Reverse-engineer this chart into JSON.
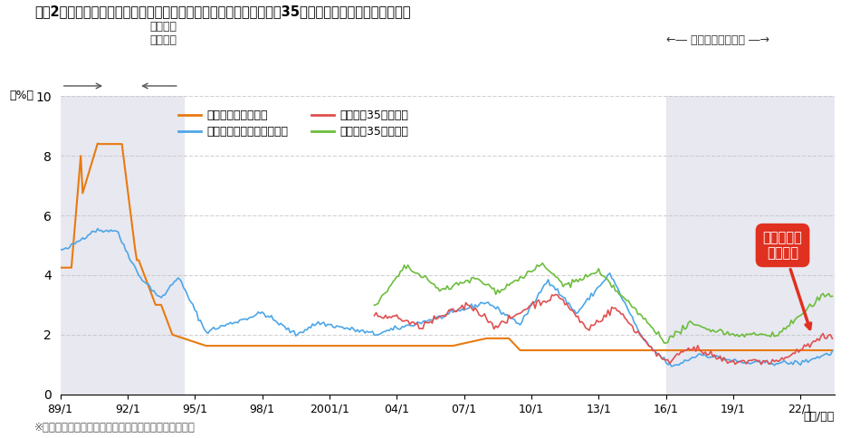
{
  "title": "図表2　短期プライムレート・住宅金融支援機構基準金利・フラット35借入金利（最低・最高）の推移",
  "ylabel": "（%）",
  "ylim": [
    0,
    10
  ],
  "yticks": [
    0,
    2,
    4,
    6,
    8,
    10
  ],
  "colors": {
    "short_prime": "#E87A10",
    "housing_support": "#4DA6E8",
    "flat35_min": "#E05050",
    "flat35_max": "#6DBD3C"
  },
  "legend_labels": {
    "short_prime": "短期プライムレート",
    "housing_support": "住宅金融支援機構基準金利",
    "flat35_min": "フラット35（最低）",
    "flat35_max": "フラット35（最高）"
  },
  "annotation_text": "固定金利は\n上昇基調",
  "annotation_color": "#E03020",
  "label_kotei": "固定金利\n優位時代",
  "label_mainasu": "←― マイナス金利政策 ―→",
  "bg_shade_color": "#E8E8F0",
  "footnote": "※出所、注についてはコラム後段部分をご確認ください",
  "xtick_labels": [
    "89/1",
    "92/1",
    "95/1",
    "98/1",
    "2001/1",
    "04/1",
    "07/1",
    "10/1",
    "13/1",
    "16/1",
    "19/1",
    "22/1"
  ],
  "xtick_positions": [
    1989.0,
    1992.0,
    1995.0,
    1998.0,
    2001.0,
    2004.0,
    2007.0,
    2010.0,
    2013.0,
    2016.0,
    2019.0,
    2022.0
  ],
  "xmax": 2023.5
}
